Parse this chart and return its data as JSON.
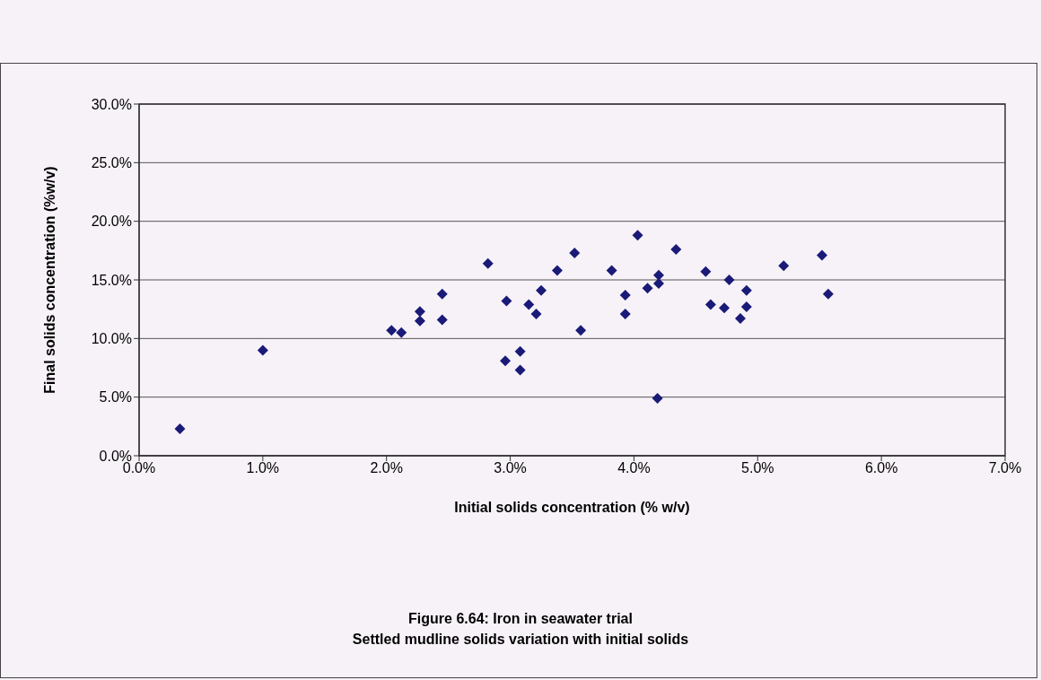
{
  "chart_data": {
    "type": "scatter",
    "title": "Figure 6.64: Iron in seawater trial",
    "subtitle": "Settled mudline solids variation with initial solids",
    "xlabel": "Initial solids concentration (% w/v)",
    "ylabel": "Final solids concentration (%w/v)",
    "x": [
      0.33,
      1.0,
      2.04,
      2.12,
      2.27,
      2.27,
      2.45,
      2.45,
      2.82,
      2.97,
      2.96,
      3.08,
      3.08,
      3.15,
      3.21,
      3.25,
      3.38,
      3.52,
      3.57,
      3.82,
      3.93,
      3.93,
      4.03,
      4.11,
      4.2,
      4.2,
      4.19,
      4.34,
      4.58,
      4.62,
      4.73,
      4.77,
      4.86,
      4.91,
      4.91,
      5.21,
      5.52,
      5.57
    ],
    "series": [
      {
        "color": "#1a1a78",
        "values": [
          2.3,
          9.0,
          10.7,
          10.5,
          12.3,
          11.5,
          13.8,
          11.6,
          16.4,
          13.2,
          8.1,
          8.9,
          7.3,
          12.9,
          12.1,
          14.1,
          15.8,
          17.3,
          10.7,
          15.8,
          13.7,
          12.1,
          18.8,
          14.3,
          15.4,
          14.7,
          4.9,
          17.6,
          15.7,
          12.9,
          12.6,
          15.0,
          11.7,
          14.1,
          12.7,
          16.2,
          17.1,
          13.8
        ]
      }
    ],
    "marker": "diamond",
    "grid": "y",
    "legend": false,
    "xlim": [
      0,
      7
    ],
    "xticks": [
      {
        "value": 0,
        "label": "0.0%"
      },
      {
        "value": 1,
        "label": "1.0%"
      },
      {
        "value": 2,
        "label": "2.0%"
      },
      {
        "value": 3,
        "label": "3.0%"
      },
      {
        "value": 4,
        "label": "4.0%"
      },
      {
        "value": 5,
        "label": "5.0%"
      },
      {
        "value": 6,
        "label": "6.0%"
      },
      {
        "value": 7,
        "label": "7.0%"
      }
    ],
    "ylim": [
      0,
      30
    ],
    "yticks": [
      {
        "value": 0,
        "label": "0.0%"
      },
      {
        "value": 5,
        "label": "5.0%"
      },
      {
        "value": 10,
        "label": "10.0%"
      },
      {
        "value": 15,
        "label": "15.0%"
      },
      {
        "value": 20,
        "label": "20.0%"
      },
      {
        "value": 25,
        "label": "25.0%"
      },
      {
        "value": 30,
        "label": "30.0%"
      }
    ]
  }
}
